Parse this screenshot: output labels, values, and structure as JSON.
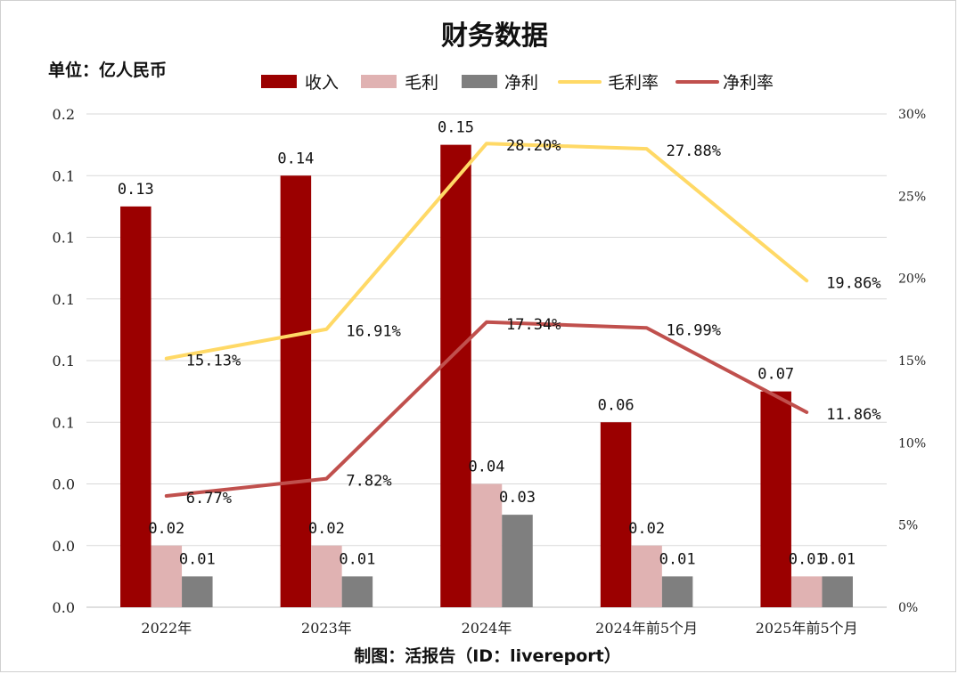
{
  "chart_data": {
    "type": "bar",
    "title": "财务数据",
    "unit_label": "单位：亿人民币",
    "footer": "制图：活报告（ID：livereport）",
    "categories": [
      "2022年",
      "2023年",
      "2024年",
      "2024年前5个月",
      "2025年前5个月"
    ],
    "series": [
      {
        "name": "收入",
        "kind": "bar",
        "axis": "left",
        "color": "#9b0000",
        "values": [
          0.13,
          0.14,
          0.15,
          0.06,
          0.07
        ],
        "labels": [
          "0.13",
          "0.14",
          "0.15",
          "0.06",
          "0.07"
        ]
      },
      {
        "name": "毛利",
        "kind": "bar",
        "axis": "left",
        "color": "#e0b2b2",
        "values": [
          0.02,
          0.02,
          0.04,
          0.02,
          0.01
        ],
        "labels": [
          "0.02",
          "0.02",
          "0.04",
          "0.02",
          "0.01"
        ]
      },
      {
        "name": "净利",
        "kind": "bar",
        "axis": "left",
        "color": "#7f7f7f",
        "values": [
          0.01,
          0.01,
          0.03,
          0.01,
          0.01
        ],
        "labels": [
          "0.01",
          "0.01",
          "0.03",
          "0.01",
          "0.01"
        ]
      },
      {
        "name": "毛利率",
        "kind": "line",
        "axis": "right",
        "color": "#ffd966",
        "values": [
          15.13,
          16.91,
          28.2,
          27.88,
          19.86
        ],
        "labels": [
          "15.13%",
          "16.91%",
          "28.20%",
          "27.88%",
          "19.86%"
        ]
      },
      {
        "name": "净利率",
        "kind": "line",
        "axis": "right",
        "color": "#c0504d",
        "values": [
          6.77,
          7.82,
          17.34,
          16.99,
          11.86
        ],
        "labels": [
          "6.77%",
          "7.82%",
          "17.34%",
          "16.99%",
          "11.86%"
        ]
      }
    ],
    "y_left": {
      "ticks": [
        "0.0",
        "0.0",
        "0.0",
        "0.1",
        "0.1",
        "0.1",
        "0.1",
        "0.1",
        "0.2"
      ]
    },
    "y_right": {
      "ticks": [
        "0%",
        "5%",
        "10%",
        "15%",
        "20%",
        "25%",
        "30%"
      ],
      "range": [
        0,
        30
      ]
    },
    "grid": true,
    "legend": "top-center"
  }
}
